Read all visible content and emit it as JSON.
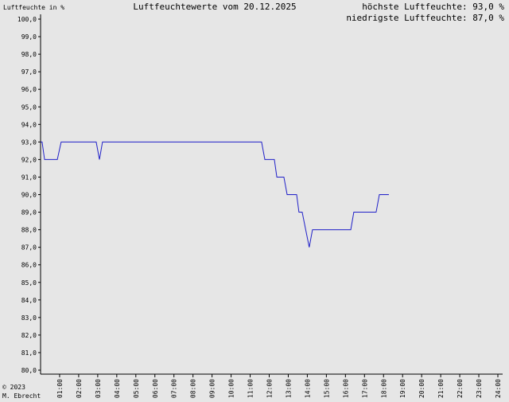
{
  "chart_data": {
    "type": "line",
    "title": "Luftfeuchtewerte vom 20.12.2025",
    "y_label": "Luftfeuchte in %",
    "max_label": "höchste Luftfeuchte: 93,0 %",
    "min_label": "niedrigste Luftfeuchte: 87,0 %",
    "copyright": "© 2023",
    "author": "M. Ebrecht",
    "xlim": [
      0,
      24
    ],
    "ylim": [
      80,
      100
    ],
    "xticks": [
      {
        "value": 1,
        "label": "01:00"
      },
      {
        "value": 2,
        "label": "02:00"
      },
      {
        "value": 3,
        "label": "03:00"
      },
      {
        "value": 4,
        "label": "04:00"
      },
      {
        "value": 5,
        "label": "05:00"
      },
      {
        "value": 6,
        "label": "06:00"
      },
      {
        "value": 7,
        "label": "07:00"
      },
      {
        "value": 8,
        "label": "08:00"
      },
      {
        "value": 9,
        "label": "09:00"
      },
      {
        "value": 10,
        "label": "10:00"
      },
      {
        "value": 11,
        "label": "11:00"
      },
      {
        "value": 12,
        "label": "12:00"
      },
      {
        "value": 13,
        "label": "13:00"
      },
      {
        "value": 14,
        "label": "14:00"
      },
      {
        "value": 15,
        "label": "15:00"
      },
      {
        "value": 16,
        "label": "16:00"
      },
      {
        "value": 17,
        "label": "17:00"
      },
      {
        "value": 18,
        "label": "18:00"
      },
      {
        "value": 19,
        "label": "19:00"
      },
      {
        "value": 20,
        "label": "20:00"
      },
      {
        "value": 21,
        "label": "21:00"
      },
      {
        "value": 22,
        "label": "22:00"
      },
      {
        "value": 23,
        "label": "23:00"
      },
      {
        "value": 24,
        "label": "24:00"
      }
    ],
    "yticks": [
      {
        "value": 80,
        "label": "80,0"
      },
      {
        "value": 81,
        "label": "81,0"
      },
      {
        "value": 82,
        "label": "82,0"
      },
      {
        "value": 83,
        "label": "83,0"
      },
      {
        "value": 84,
        "label": "84,0"
      },
      {
        "value": 85,
        "label": "85,0"
      },
      {
        "value": 86,
        "label": "86,0"
      },
      {
        "value": 87,
        "label": "87,0"
      },
      {
        "value": 88,
        "label": "88,0"
      },
      {
        "value": 89,
        "label": "89,0"
      },
      {
        "value": 90,
        "label": "90,0"
      },
      {
        "value": 91,
        "label": "91,0"
      },
      {
        "value": 92,
        "label": "92,0"
      },
      {
        "value": 93,
        "label": "93,0"
      },
      {
        "value": 94,
        "label": "94,0"
      },
      {
        "value": 95,
        "label": "95,0"
      },
      {
        "value": 96,
        "label": "96,0"
      },
      {
        "value": 97,
        "label": "97,0"
      },
      {
        "value": 98,
        "label": "98,0"
      },
      {
        "value": 99,
        "label": "99,0"
      },
      {
        "value": 100,
        "label": "100,0"
      }
    ],
    "color": "#2020c8",
    "x": [
      0,
      0.08,
      0.21,
      0.88,
      1.08,
      2.92,
      3.09,
      3.25,
      11.6,
      11.77,
      12.27,
      12.4,
      12.77,
      12.94,
      13.44,
      13.56,
      13.73,
      14.1,
      14.27,
      16.28,
      16.44,
      17.61,
      17.78,
      18.28
    ],
    "values": [
      93,
      93,
      92,
      92,
      93,
      93,
      92,
      93,
      93,
      92,
      92,
      91,
      91,
      90,
      90,
      89,
      89,
      87,
      88,
      88,
      89,
      89,
      90,
      90
    ]
  }
}
